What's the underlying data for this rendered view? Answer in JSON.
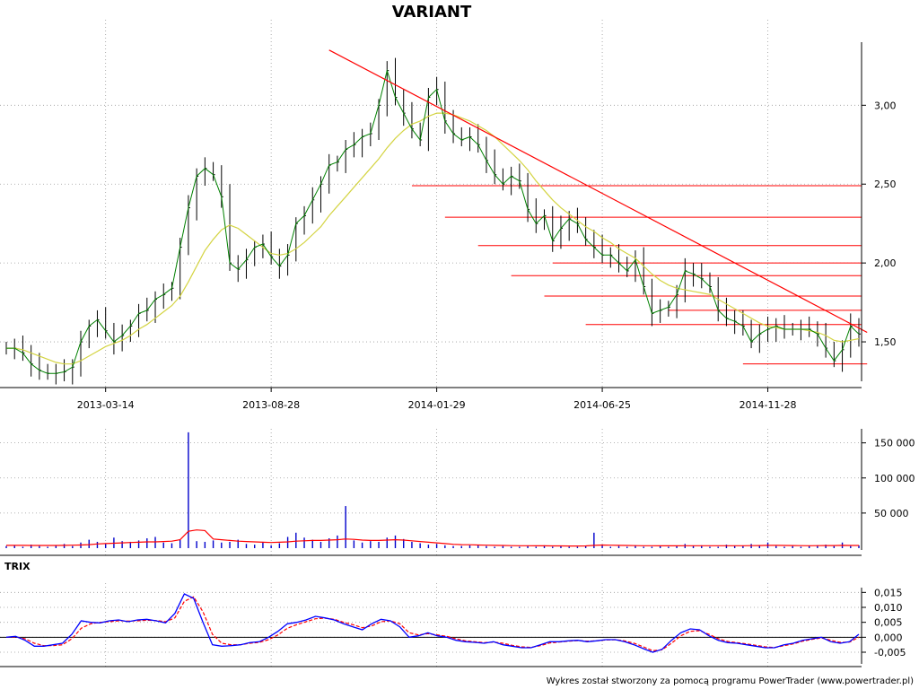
{
  "chart_data": {
    "type": "candlestick",
    "title": "VARIANT",
    "footer": "Wykres został stworzony za pomocą programu PowerTrader (www.powertrader.pl)",
    "colors": {
      "price": "#000000",
      "ma_short": "#008000",
      "ma_long": "#d4d442",
      "trendline": "#ff0000",
      "volume": "#0000cc",
      "volume_avg": "#ff0000",
      "trix": "#0000ff",
      "trix_signal": "#ff0000"
    },
    "price_panel": {
      "ylim": [
        1.25,
        3.4
      ],
      "y_ticks": [
        1.5,
        2.0,
        2.5,
        3.0
      ],
      "y_tick_labels": [
        "1,50",
        "2,00",
        "2,50",
        "3,00"
      ],
      "x_tick_labels": [
        "2013-03-14",
        "2013-08-28",
        "2014-01-29",
        "2014-06-25",
        "2014-11-28"
      ],
      "x_tick_index": [
        12,
        32,
        52,
        72,
        92
      ],
      "n_periods": 104,
      "close": [
        1.46,
        1.46,
        1.43,
        1.36,
        1.32,
        1.3,
        1.3,
        1.31,
        1.34,
        1.5,
        1.6,
        1.64,
        1.57,
        1.5,
        1.54,
        1.6,
        1.68,
        1.7,
        1.77,
        1.8,
        1.84,
        2.1,
        2.35,
        2.55,
        2.6,
        2.56,
        2.42,
        2.0,
        1.96,
        2.02,
        2.1,
        2.12,
        2.04,
        1.98,
        2.05,
        2.25,
        2.3,
        2.4,
        2.5,
        2.62,
        2.64,
        2.72,
        2.75,
        2.8,
        2.82,
        3.0,
        3.22,
        3.05,
        2.95,
        2.85,
        2.78,
        3.05,
        3.1,
        2.9,
        2.82,
        2.78,
        2.8,
        2.75,
        2.65,
        2.56,
        2.5,
        2.55,
        2.52,
        2.34,
        2.25,
        2.3,
        2.14,
        2.22,
        2.28,
        2.25,
        2.15,
        2.1,
        2.05,
        2.05,
        2.0,
        1.95,
        2.02,
        1.85,
        1.68,
        1.7,
        1.72,
        1.8,
        1.95,
        1.93,
        1.9,
        1.85,
        1.7,
        1.65,
        1.63,
        1.6,
        1.5,
        1.55,
        1.58,
        1.6,
        1.58,
        1.58,
        1.58,
        1.58,
        1.55,
        1.46,
        1.38,
        1.45,
        1.6,
        1.55
      ],
      "ma_long": [
        1.46,
        1.46,
        1.45,
        1.43,
        1.41,
        1.39,
        1.37,
        1.36,
        1.36,
        1.38,
        1.41,
        1.44,
        1.47,
        1.49,
        1.51,
        1.54,
        1.58,
        1.61,
        1.65,
        1.69,
        1.73,
        1.79,
        1.88,
        1.98,
        2.08,
        2.15,
        2.21,
        2.24,
        2.22,
        2.18,
        2.14,
        2.1,
        2.06,
        2.05,
        2.06,
        2.09,
        2.13,
        2.18,
        2.23,
        2.3,
        2.36,
        2.42,
        2.48,
        2.54,
        2.6,
        2.66,
        2.73,
        2.79,
        2.84,
        2.88,
        2.9,
        2.93,
        2.95,
        2.95,
        2.94,
        2.92,
        2.9,
        2.87,
        2.84,
        2.8,
        2.75,
        2.7,
        2.65,
        2.59,
        2.52,
        2.46,
        2.4,
        2.35,
        2.31,
        2.27,
        2.23,
        2.2,
        2.16,
        2.13,
        2.09,
        2.06,
        2.03,
        1.98,
        1.93,
        1.89,
        1.86,
        1.84,
        1.83,
        1.82,
        1.81,
        1.8,
        1.77,
        1.74,
        1.71,
        1.68,
        1.65,
        1.62,
        1.6,
        1.59,
        1.58,
        1.58,
        1.58,
        1.57,
        1.56,
        1.54,
        1.51,
        1.5,
        1.51,
        1.52
      ],
      "horizontal_levels": [
        {
          "value": 2.49,
          "from_index": 49
        },
        {
          "value": 2.29,
          "from_index": 53
        },
        {
          "value": 2.11,
          "from_index": 57
        },
        {
          "value": 2.0,
          "from_index": 66
        },
        {
          "value": 1.92,
          "from_index": 61
        },
        {
          "value": 1.79,
          "from_index": 65
        },
        {
          "value": 1.7,
          "from_index": 80
        },
        {
          "value": 1.61,
          "from_index": 70
        },
        {
          "value": 1.36,
          "from_index": 89,
          "to_index": 104
        }
      ],
      "trendline": {
        "from": [
          39,
          3.35
        ],
        "to": [
          104,
          1.56
        ]
      }
    },
    "volume_panel": {
      "ylim": [
        0,
        170000
      ],
      "y_ticks": [
        50000,
        100000,
        150000
      ],
      "y_tick_labels": [
        "50 000",
        "100 000",
        "150 000"
      ],
      "volume": [
        3000,
        4000,
        2000,
        5000,
        3000,
        2000,
        4000,
        6000,
        3000,
        8000,
        12000,
        9000,
        6000,
        15000,
        10000,
        9000,
        11000,
        14000,
        16000,
        8000,
        7000,
        12000,
        165000,
        10000,
        9000,
        11000,
        8000,
        9000,
        12000,
        6000,
        5000,
        9000,
        4000,
        7000,
        16000,
        22000,
        15000,
        12000,
        9000,
        14000,
        18000,
        60000,
        11000,
        8000,
        10000,
        9000,
        15000,
        18000,
        13000,
        9000,
        7000,
        5000,
        6000,
        4000,
        3000,
        3000,
        4000,
        5000,
        3000,
        2000,
        3000,
        2000,
        2000,
        3000,
        2000,
        4000,
        2000,
        3000,
        2000,
        2000,
        3000,
        22000,
        5000,
        2000,
        3000,
        2000,
        4000,
        2000,
        2000,
        3000,
        2000,
        3000,
        6000,
        3000,
        4000,
        2000,
        2000,
        5000,
        3000,
        3000,
        6000,
        4000,
        8000,
        3000,
        2000,
        3000,
        2000,
        3000,
        4000,
        5000,
        3000,
        8000,
        3000,
        4000
      ],
      "volume_avg": [
        4000,
        4000,
        3900,
        3800,
        3800,
        3800,
        3800,
        4000,
        4200,
        4500,
        5000,
        6000,
        6500,
        7000,
        7500,
        8000,
        8500,
        9000,
        9000,
        9500,
        10000,
        12000,
        24000,
        26000,
        25000,
        13000,
        12000,
        11000,
        10000,
        9500,
        9000,
        8500,
        8000,
        8500,
        9000,
        10000,
        10500,
        11000,
        11000,
        11500,
        12000,
        13000,
        12500,
        11500,
        11000,
        11000,
        11500,
        12000,
        11500,
        10500,
        9500,
        8500,
        7500,
        6500,
        5500,
        5000,
        4800,
        4500,
        4200,
        4000,
        3800,
        3600,
        3500,
        3400,
        3300,
        3300,
        3200,
        3200,
        3100,
        3100,
        3200,
        4000,
        4500,
        4200,
        4000,
        3800,
        3600,
        3500,
        3400,
        3300,
        3300,
        3300,
        3500,
        3500,
        3500,
        3400,
        3400,
        3500,
        3500,
        3500,
        3600,
        3700,
        3900,
        3900,
        3800,
        3700,
        3600,
        3500,
        3600,
        3700,
        3700,
        3900,
        3800,
        3800
      ]
    },
    "trix_panel": {
      "label": "TRIX",
      "ylim": [
        -0.008,
        0.016
      ],
      "y_ticks": [
        -0.005,
        0.0,
        0.005,
        0.01,
        0.015
      ],
      "y_tick_labels": [
        "-0,005",
        "0,000",
        "0,005",
        "0,010",
        "0,015"
      ],
      "trix": [
        0.0,
        0.0003,
        -0.001,
        -0.003,
        -0.003,
        -0.0025,
        -0.002,
        0.001,
        0.0055,
        0.005,
        0.0048,
        0.0055,
        0.0058,
        0.0052,
        0.0058,
        0.006,
        0.0055,
        0.0048,
        0.008,
        0.0145,
        0.013,
        0.005,
        -0.0025,
        -0.003,
        -0.0028,
        -0.0025,
        -0.0018,
        -0.0015,
        0.0,
        0.002,
        0.0045,
        0.005,
        0.0058,
        0.007,
        0.0065,
        0.0058,
        0.0045,
        0.0035,
        0.0025,
        0.0045,
        0.006,
        0.0055,
        0.0035,
        0.0,
        0.0005,
        0.0015,
        0.0005,
        0.0,
        -0.001,
        -0.0015,
        -0.0017,
        -0.002,
        -0.0015,
        -0.0025,
        -0.003,
        -0.0035,
        -0.0035,
        -0.0025,
        -0.0015,
        -0.0015,
        -0.0012,
        -0.001,
        -0.0015,
        -0.0012,
        -0.0008,
        -0.0008,
        -0.0015,
        -0.0025,
        -0.0038,
        -0.005,
        -0.004,
        -0.001,
        0.0015,
        0.0028,
        0.0025,
        0.0005,
        -0.001,
        -0.0018,
        -0.002,
        -0.0025,
        -0.003,
        -0.0035,
        -0.0035,
        -0.0025,
        -0.002,
        -0.001,
        -0.0005,
        0.0,
        -0.0015,
        -0.002,
        -0.0015,
        0.001
      ],
      "signal": [
        0.0,
        0.0001,
        -0.0005,
        -0.002,
        -0.0028,
        -0.0028,
        -0.0025,
        -0.0005,
        0.003,
        0.0045,
        0.005,
        0.0052,
        0.0055,
        0.0054,
        0.0055,
        0.0057,
        0.0056,
        0.0052,
        0.0065,
        0.012,
        0.0135,
        0.0085,
        0.001,
        -0.002,
        -0.0025,
        -0.0025,
        -0.002,
        -0.0017,
        -0.0008,
        0.0008,
        0.003,
        0.0042,
        0.0052,
        0.0062,
        0.0064,
        0.006,
        0.005,
        0.0042,
        0.0032,
        0.0038,
        0.0052,
        0.0055,
        0.0045,
        0.0015,
        0.0008,
        0.0012,
        0.0008,
        0.0003,
        -0.0005,
        -0.0012,
        -0.0015,
        -0.0018,
        -0.0016,
        -0.002,
        -0.0027,
        -0.0032,
        -0.0034,
        -0.0028,
        -0.0019,
        -0.0016,
        -0.0013,
        -0.0011,
        -0.0013,
        -0.0012,
        -0.0009,
        -0.0008,
        -0.0012,
        -0.002,
        -0.0032,
        -0.0045,
        -0.0042,
        -0.002,
        0.0005,
        0.002,
        0.0022,
        0.001,
        -0.0005,
        -0.0014,
        -0.0018,
        -0.0022,
        -0.0027,
        -0.0032,
        -0.0034,
        -0.0028,
        -0.0022,
        -0.0013,
        -0.0007,
        -0.0002,
        -0.001,
        -0.0017,
        -0.0016,
        0.0
      ]
    }
  }
}
